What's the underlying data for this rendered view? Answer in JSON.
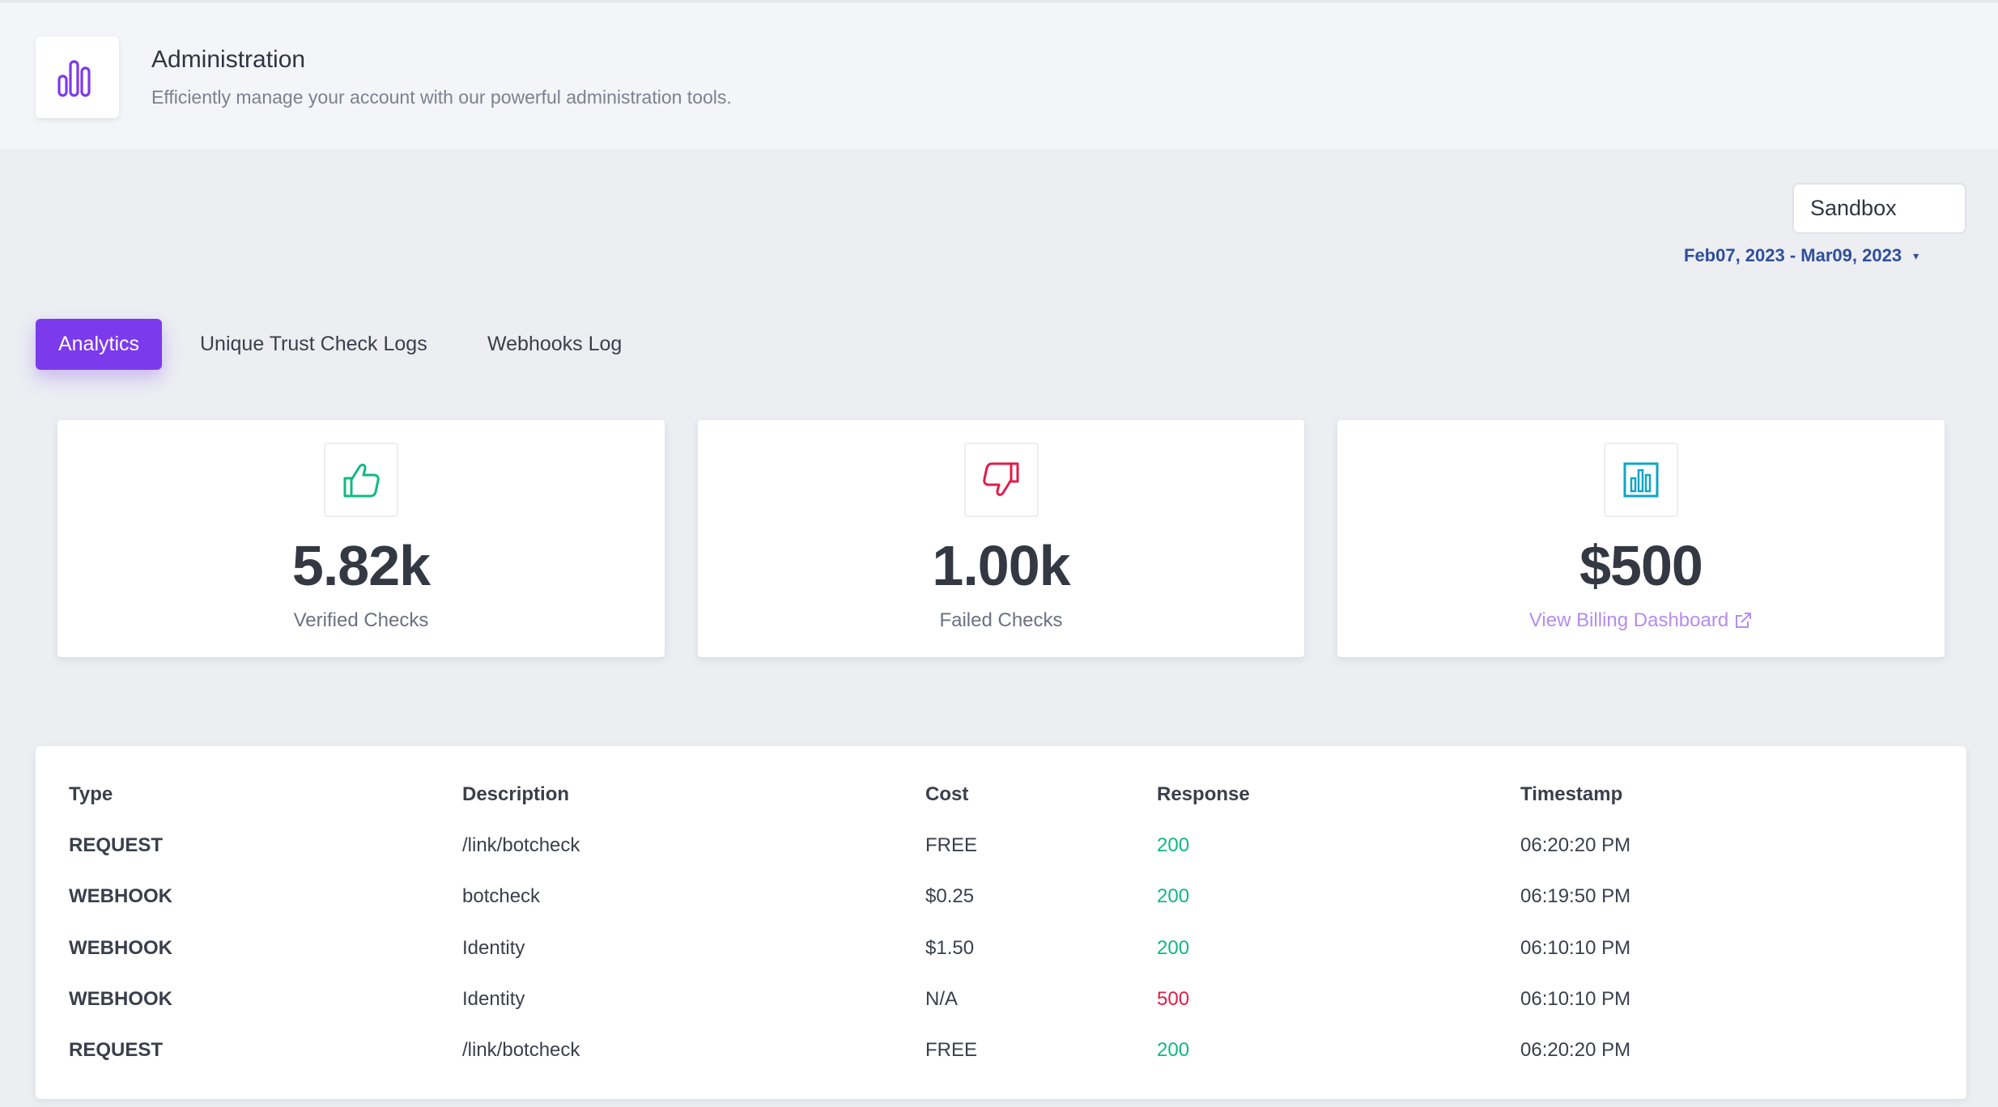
{
  "header": {
    "title": "Administration",
    "subtitle": "Efficiently manage your account with our powerful administration tools.",
    "icon": "bar-chart-icon"
  },
  "environment": {
    "selected": "Sandbox"
  },
  "date_range": {
    "label": "Feb07, 2023 - Mar09, 2023",
    "icon": "caret-down-icon"
  },
  "tabs": [
    {
      "label": "Analytics",
      "active": true
    },
    {
      "label": "Unique Trust Check Logs",
      "active": false
    },
    {
      "label": "Webhooks Log",
      "active": false
    }
  ],
  "stats": [
    {
      "value": "5.82k",
      "label": "Verified Checks",
      "icon": "thumbs-up-icon",
      "color": "#10b981"
    },
    {
      "value": "1.00k",
      "label": "Failed Checks",
      "icon": "thumbs-down-icon",
      "color": "#e11d48"
    },
    {
      "value": "$500",
      "link": "View Billing Dashboard",
      "icon": "bar-chart-icon",
      "color": "#0ea5c6",
      "link_icon": "external-link-icon"
    }
  ],
  "table": {
    "headers": [
      "Type",
      "Description",
      "Cost",
      "Response",
      "Timestamp"
    ],
    "rows": [
      [
        "REQUEST",
        "/link/botcheck",
        "FREE",
        "200",
        "06:20:20 PM"
      ],
      [
        "WEBHOOK",
        "botcheck",
        "$0.25",
        "200",
        "06:19:50 PM"
      ],
      [
        "WEBHOOK",
        "Identity",
        "$1.50",
        "200",
        "06:10:10 PM"
      ],
      [
        "WEBHOOK",
        "Identity",
        "N/A",
        "500",
        "06:10:10 PM"
      ],
      [
        "REQUEST",
        "/link/botcheck",
        "FREE",
        "200",
        "06:20:20 PM"
      ]
    ]
  },
  "colors": {
    "accent": "#7c3aed",
    "success": "#10b981",
    "error": "#e11d48",
    "date_link": "#2f4e9a",
    "billing_link": "#b48cf0"
  }
}
